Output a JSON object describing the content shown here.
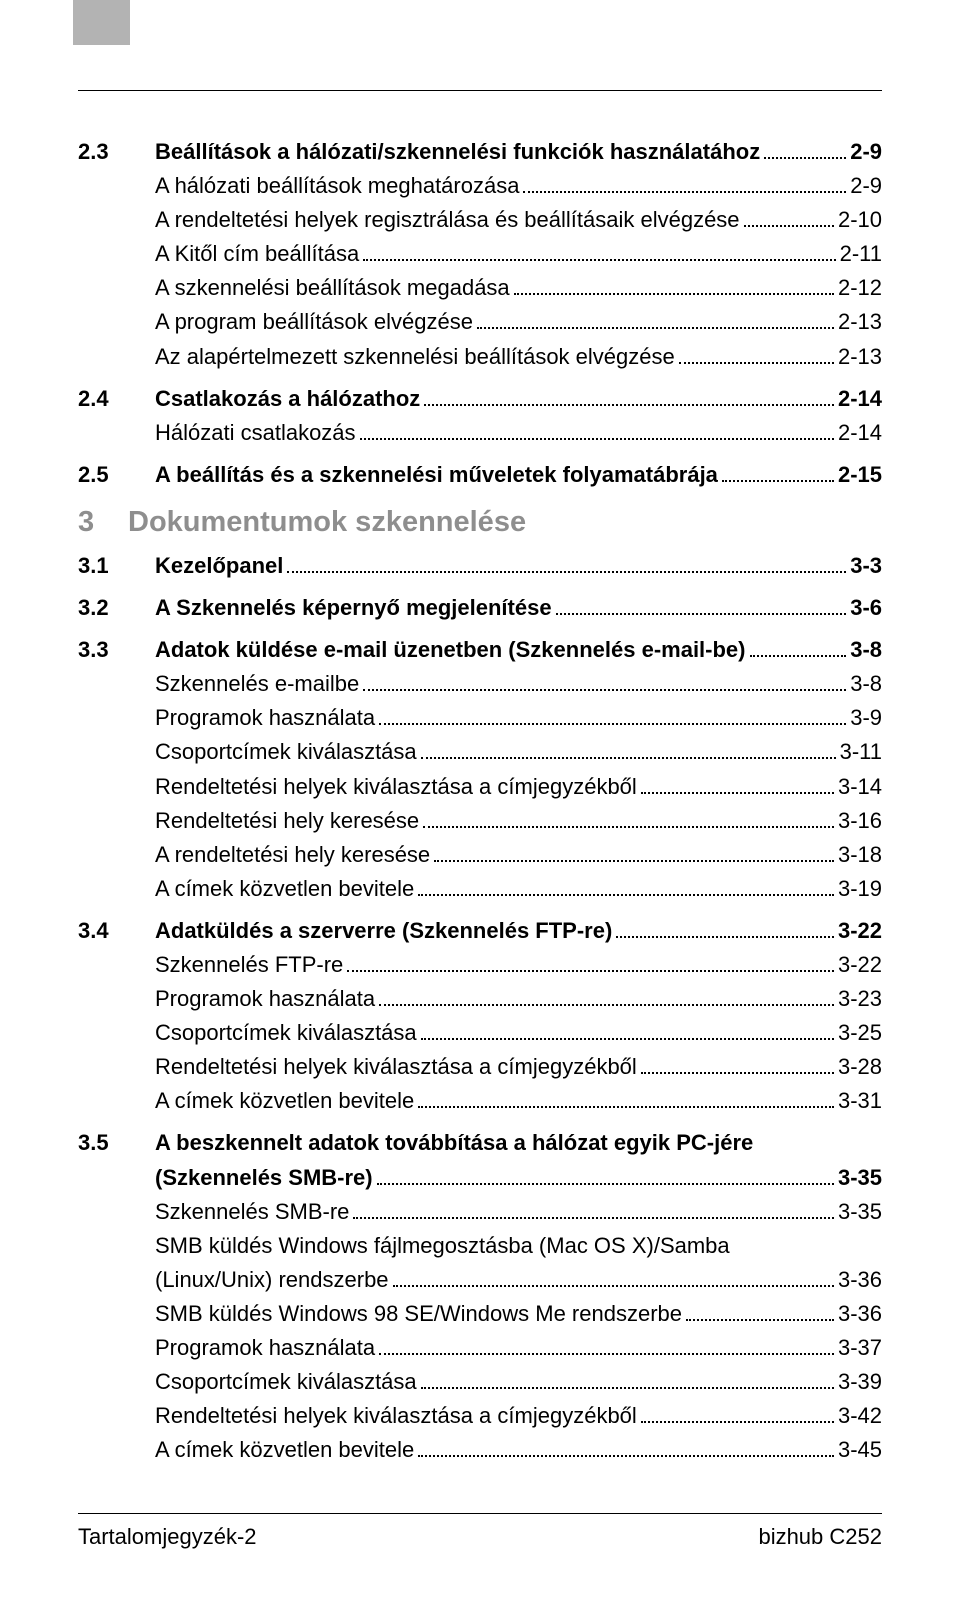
{
  "colors": {
    "tab_gray": "#b3b3b3",
    "chapter_gray": "#8e8e8e",
    "text": "#000000",
    "bg": "#ffffff"
  },
  "typography": {
    "body_fontsize": 22,
    "chapter_fontsize": 29
  },
  "sections": {
    "s23": {
      "num": "2.3",
      "title": "Beállítások a hálózati/szkennelési funkciók használatához",
      "page": "2-9",
      "items": [
        {
          "title": "A hálózati beállítások meghatározása",
          "page": "2-9"
        },
        {
          "title": "A rendeltetési helyek regisztrálása és beállításaik elvégzése",
          "page": "2-10"
        },
        {
          "title": "A Kitől cím beállítása",
          "page": "2-11"
        },
        {
          "title": "A szkennelési beállítások megadása",
          "page": "2-12"
        },
        {
          "title": "A program beállítások elvégzése",
          "page": "2-13"
        },
        {
          "title": "Az alapértelmezett szkennelési beállítások elvégzése",
          "page": "2-13"
        }
      ]
    },
    "s24": {
      "num": "2.4",
      "title": "Csatlakozás a hálózathoz",
      "page": "2-14",
      "items": [
        {
          "title": "Hálózati csatlakozás",
          "page": "2-14"
        }
      ]
    },
    "s25": {
      "num": "2.5",
      "title": "A beállítás és a szkennelési műveletek folyamatábrája",
      "page": "2-15"
    },
    "chapter3": {
      "num": "3",
      "title": "Dokumentumok szkennelése"
    },
    "s31": {
      "num": "3.1",
      "title": "Kezelőpanel",
      "page": "3-3"
    },
    "s32": {
      "num": "3.2",
      "title": "A Szkennelés képernyő megjelenítése",
      "page": "3-6"
    },
    "s33": {
      "num": "3.3",
      "title": "Adatok küldése e-mail üzenetben (Szkennelés e-mail-be)",
      "page": "3-8",
      "items": [
        {
          "title": "Szkennelés e-mailbe",
          "page": "3-8"
        },
        {
          "title": "Programok használata",
          "page": "3-9"
        },
        {
          "title": "Csoportcímek kiválasztása",
          "page": "3-11"
        },
        {
          "title": "Rendeltetési helyek kiválasztása a címjegyzékből",
          "page": "3-14"
        },
        {
          "title": "Rendeltetési hely keresése",
          "page": "3-16"
        },
        {
          "title": "A rendeltetési hely keresése",
          "page": "3-18"
        },
        {
          "title": "A címek közvetlen bevitele",
          "page": "3-19"
        }
      ]
    },
    "s34": {
      "num": "3.4",
      "title": "Adatküldés a szerverre (Szkennelés FTP-re)",
      "page": "3-22",
      "items": [
        {
          "title": "Szkennelés FTP-re",
          "page": "3-22"
        },
        {
          "title": "Programok használata",
          "page": "3-23"
        },
        {
          "title": "Csoportcímek kiválasztása",
          "page": "3-25"
        },
        {
          "title": "Rendeltetési helyek kiválasztása a címjegyzékből",
          "page": "3-28"
        },
        {
          "title": "A címek közvetlen bevitele",
          "page": "3-31"
        }
      ]
    },
    "s35": {
      "num": "3.5",
      "title_line1": "A beszkennelt adatok továbbítása a hálózat egyik PC-jére",
      "title_line2": "(Szkennelés SMB-re)",
      "page": "3-35",
      "items": [
        {
          "title": "Szkennelés SMB-re",
          "page": "3-35"
        },
        {
          "title_line1": "SMB küldés Windows fájlmegosztásba (Mac OS X)/Samba",
          "title_line2": "(Linux/Unix) rendszerbe",
          "page": "3-36"
        },
        {
          "title": "SMB küldés Windows 98 SE/Windows Me rendszerbe",
          "page": "3-36"
        },
        {
          "title": "Programok használata",
          "page": "3-37"
        },
        {
          "title": "Csoportcímek kiválasztása",
          "page": "3-39"
        },
        {
          "title": "Rendeltetési helyek kiválasztása a címjegyzékből",
          "page": "3-42"
        },
        {
          "title": "A címek közvetlen bevitele",
          "page": "3-45"
        }
      ]
    }
  },
  "footer": {
    "left": "Tartalomjegyzék-2",
    "right": "bizhub C252"
  }
}
